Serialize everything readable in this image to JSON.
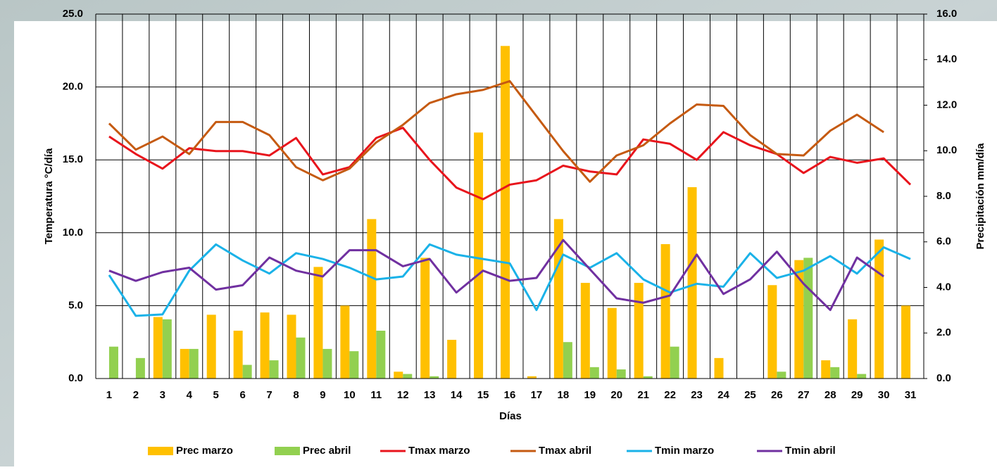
{
  "chart_data": {
    "type": "bar_line",
    "y_label": "Temperatura °C/día",
    "y2_label": "Precipitación mm/día",
    "x_label": "Días",
    "categories": [
      "1",
      "2",
      "3",
      "4",
      "5",
      "6",
      "7",
      "8",
      "9",
      "10",
      "11",
      "12",
      "13",
      "14",
      "15",
      "16",
      "17",
      "18",
      "19",
      "20",
      "21",
      "22",
      "23",
      "24",
      "25",
      "26",
      "27",
      "28",
      "29",
      "30",
      "31"
    ],
    "series": [
      {
        "name": "Prec marzo",
        "type": "bar",
        "axis": "y2",
        "color": "#ffc000",
        "values": [
          null,
          null,
          2.7,
          1.3,
          2.8,
          2.1,
          2.9,
          2.8,
          4.9,
          3.2,
          7.0,
          0.3,
          5.3,
          1.7,
          10.8,
          14.6,
          0.1,
          7.0,
          4.2,
          3.1,
          4.2,
          5.9,
          8.4,
          0.9,
          null,
          4.1,
          5.2,
          0.8,
          2.6,
          6.1,
          3.2
        ]
      },
      {
        "name": "Prec abril",
        "type": "bar",
        "axis": "y2",
        "color": "#92d050",
        "values": [
          1.4,
          0.9,
          2.6,
          1.3,
          null,
          0.6,
          0.8,
          1.8,
          1.3,
          1.2,
          2.1,
          0.2,
          0.1,
          null,
          null,
          null,
          null,
          1.6,
          0.5,
          0.4,
          0.1,
          1.4,
          null,
          null,
          null,
          0.3,
          5.3,
          0.5,
          0.2,
          null,
          null
        ]
      },
      {
        "name": "Tmax marzo",
        "type": "line",
        "color": "#e8141c",
        "values": [
          16.6,
          15.4,
          14.4,
          15.8,
          15.6,
          15.6,
          15.3,
          16.5,
          14.0,
          14.5,
          16.5,
          17.2,
          15.0,
          13.1,
          12.3,
          13.3,
          13.6,
          14.6,
          14.2,
          14.0,
          16.4,
          16.1,
          15.0,
          16.9,
          16.0,
          15.4,
          14.1,
          15.2,
          14.8,
          15.1,
          13.3
        ]
      },
      {
        "name": "Tmax abril",
        "type": "line",
        "color": "#c55a11",
        "values": [
          17.5,
          15.7,
          16.6,
          15.4,
          17.6,
          17.6,
          16.7,
          14.5,
          13.6,
          14.4,
          16.2,
          17.4,
          18.9,
          19.5,
          19.8,
          20.4,
          18.0,
          15.6,
          13.5,
          15.3,
          16.0,
          17.5,
          18.8,
          18.7,
          16.7,
          15.4,
          15.3,
          17.0,
          18.1,
          16.9,
          null
        ]
      },
      {
        "name": "Tmin marzo",
        "type": "line",
        "color": "#1ab2e8",
        "values": [
          7.1,
          4.3,
          4.4,
          7.4,
          9.2,
          8.1,
          7.2,
          8.6,
          8.2,
          7.6,
          6.8,
          7.0,
          9.2,
          8.5,
          8.2,
          7.9,
          4.7,
          8.5,
          7.6,
          8.6,
          6.8,
          5.9,
          6.5,
          6.3,
          8.6,
          6.9,
          7.4,
          8.4,
          7.2,
          9.0,
          8.2
        ]
      },
      {
        "name": "Tmin abril",
        "type": "line",
        "color": "#7030a0",
        "values": [
          7.4,
          6.7,
          7.3,
          7.6,
          6.1,
          6.4,
          8.3,
          7.4,
          7.0,
          8.8,
          8.8,
          7.7,
          8.2,
          5.9,
          7.4,
          6.7,
          6.9,
          9.5,
          7.5,
          5.5,
          5.2,
          5.7,
          8.5,
          5.8,
          6.8,
          8.7,
          6.5,
          4.7,
          8.3,
          7.0,
          null
        ]
      }
    ],
    "ylim": [
      0,
      25
    ],
    "yticks": [
      {
        "value": 0,
        "label": "0.0"
      },
      {
        "value": 5,
        "label": "5.0"
      },
      {
        "value": 10,
        "label": "10.0"
      },
      {
        "value": 15,
        "label": "15.0"
      },
      {
        "value": 20,
        "label": "20.0"
      },
      {
        "value": 25,
        "label": "25.0"
      }
    ],
    "y2lim": [
      0,
      16
    ],
    "y2ticks": [
      {
        "value": 0,
        "label": "0.0"
      },
      {
        "value": 2,
        "label": "2.0"
      },
      {
        "value": 4,
        "label": "4.0"
      },
      {
        "value": 6,
        "label": "6.0"
      },
      {
        "value": 8,
        "label": "8.0"
      },
      {
        "value": 10,
        "label": "10.0"
      },
      {
        "value": 12,
        "label": "12.0"
      },
      {
        "value": 14,
        "label": "14.0"
      },
      {
        "value": 16,
        "label": "16.0"
      }
    ],
    "grid": true,
    "legend": "bottom"
  }
}
